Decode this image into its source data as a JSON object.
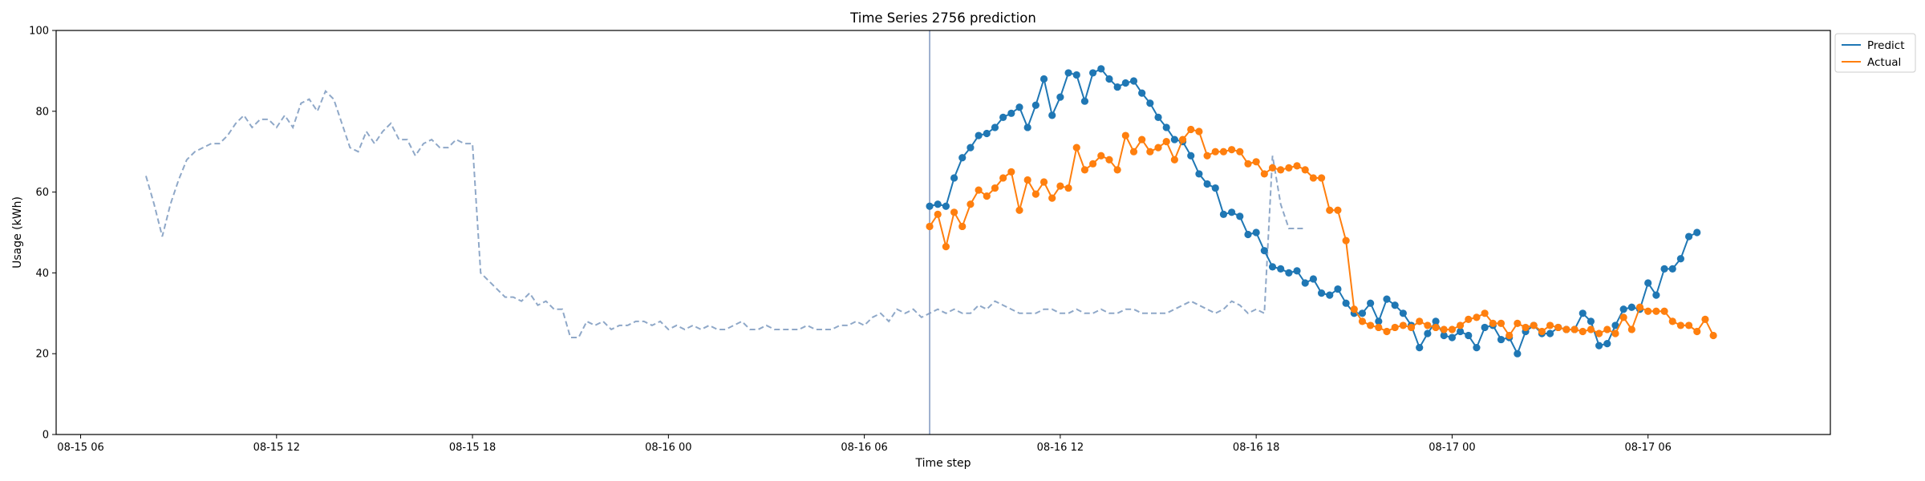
{
  "chart_data": {
    "type": "line",
    "title": "Time Series 2756 prediction",
    "xlabel": "Time step",
    "ylabel": "Usage (kWh)",
    "ylim": [
      0,
      100
    ],
    "yticks": [
      0,
      20,
      40,
      60,
      80,
      100
    ],
    "xlim": [
      "2024-08-15 05:15",
      "2024-08-17 11:35"
    ],
    "xticks": [
      {
        "t": "2024-08-15 06:00",
        "label": "08-15 06"
      },
      {
        "t": "2024-08-15 12:00",
        "label": "08-15 12"
      },
      {
        "t": "2024-08-15 18:00",
        "label": "08-15 18"
      },
      {
        "t": "2024-08-16 00:00",
        "label": "08-16 00"
      },
      {
        "t": "2024-08-16 06:00",
        "label": "08-16 06"
      },
      {
        "t": "2024-08-16 12:00",
        "label": "08-16 12"
      },
      {
        "t": "2024-08-16 18:00",
        "label": "08-16 18"
      },
      {
        "t": "2024-08-17 00:00",
        "label": "08-17 00"
      },
      {
        "t": "2024-08-17 06:00",
        "label": "08-17 06"
      }
    ],
    "grid": false,
    "legend_position": "upper-right-outside",
    "forecast_start": "2024-08-16 08:00",
    "history": {
      "start": "2024-08-15 08:00",
      "step_minutes": 15,
      "color": "#8fa8c8",
      "values": [
        64,
        57,
        49,
        57,
        63,
        68,
        70,
        71,
        72,
        72,
        74,
        77,
        79,
        76,
        78,
        78,
        76,
        79,
        76,
        82,
        83,
        80,
        85,
        83,
        77,
        71,
        70,
        75,
        72,
        75,
        77,
        73,
        73,
        69,
        72,
        73,
        71,
        71,
        73,
        72,
        72,
        40,
        38,
        36,
        34,
        34,
        33,
        35,
        32,
        33,
        31,
        31,
        24,
        24,
        28,
        27,
        28,
        26,
        27,
        27,
        28,
        28,
        27,
        28,
        26,
        27,
        26,
        27,
        26,
        27,
        26,
        26,
        27,
        28,
        26,
        26,
        27,
        26,
        26,
        26,
        26,
        27,
        26,
        26,
        26,
        27,
        27,
        28,
        27,
        29,
        30,
        28,
        31,
        30,
        31,
        29,
        30,
        31,
        30,
        31,
        30,
        30,
        32,
        31,
        33,
        32,
        31,
        30,
        30,
        30,
        31,
        31,
        30,
        30,
        31,
        30,
        30,
        31,
        30,
        30,
        31,
        31,
        30,
        30,
        30,
        30,
        31,
        32,
        33,
        32,
        31,
        30,
        31,
        33,
        32,
        30,
        31,
        30,
        69,
        57,
        51,
        51,
        51
      ]
    },
    "series": [
      {
        "name": "Predict",
        "color": "#1f77b4",
        "start": "2024-08-16 08:00",
        "step_minutes": 15,
        "values": [
          56.5,
          57,
          56.5,
          63.5,
          68.5,
          71,
          74,
          74.5,
          76,
          78.5,
          79.5,
          81,
          76,
          81.5,
          88,
          79,
          83.5,
          89.5,
          89,
          82.5,
          89.5,
          90.5,
          88,
          86,
          87,
          87.5,
          84.5,
          82,
          78.5,
          76,
          73,
          72.5,
          69,
          64.5,
          62,
          61,
          54.5,
          55,
          54,
          49.5,
          50,
          45.5,
          41.5,
          41,
          40,
          40.5,
          37.5,
          38.5,
          35,
          34.5,
          36,
          32.5,
          30,
          30,
          32.5,
          28,
          33.5,
          32,
          30,
          27,
          21.5,
          25,
          28,
          24.5,
          24,
          25.5,
          24.5,
          21.5,
          26.5,
          27,
          23.5,
          24,
          20,
          25.5,
          27,
          25,
          25,
          26.5,
          26,
          26,
          30,
          28,
          22,
          22.5,
          27,
          31,
          31.5,
          31,
          37.5,
          34.5,
          41,
          41,
          43.5,
          49,
          50
        ]
      },
      {
        "name": "Actual",
        "color": "#ff7f0e",
        "start": "2024-08-16 08:00",
        "step_minutes": 15,
        "values": [
          51.5,
          54.5,
          46.5,
          55,
          51.5,
          57,
          60.5,
          59,
          61,
          63.5,
          65,
          55.5,
          63,
          59.5,
          62.5,
          58.5,
          61.5,
          61,
          71,
          65.5,
          67,
          69,
          68,
          65.5,
          74,
          70,
          73,
          70,
          71,
          72.5,
          68,
          73,
          75.5,
          75,
          69,
          70,
          70,
          70.5,
          70,
          67,
          67.5,
          64.5,
          66,
          65.5,
          66,
          66.5,
          65.5,
          63.5,
          63.5,
          55.5,
          55.5,
          48,
          31,
          28,
          27,
          26.5,
          25.5,
          26.5,
          27,
          26.5,
          28,
          27,
          26.5,
          26,
          26,
          27,
          28.5,
          29,
          30,
          27.5,
          27.5,
          24.5,
          27.5,
          26.5,
          27,
          25.5,
          27,
          26.5,
          26,
          26,
          25.5,
          26,
          25,
          26,
          25,
          29,
          26,
          31.5,
          30.5,
          30.5,
          30.5,
          28,
          27,
          27,
          25.5,
          28.5,
          24.5
        ]
      }
    ]
  }
}
